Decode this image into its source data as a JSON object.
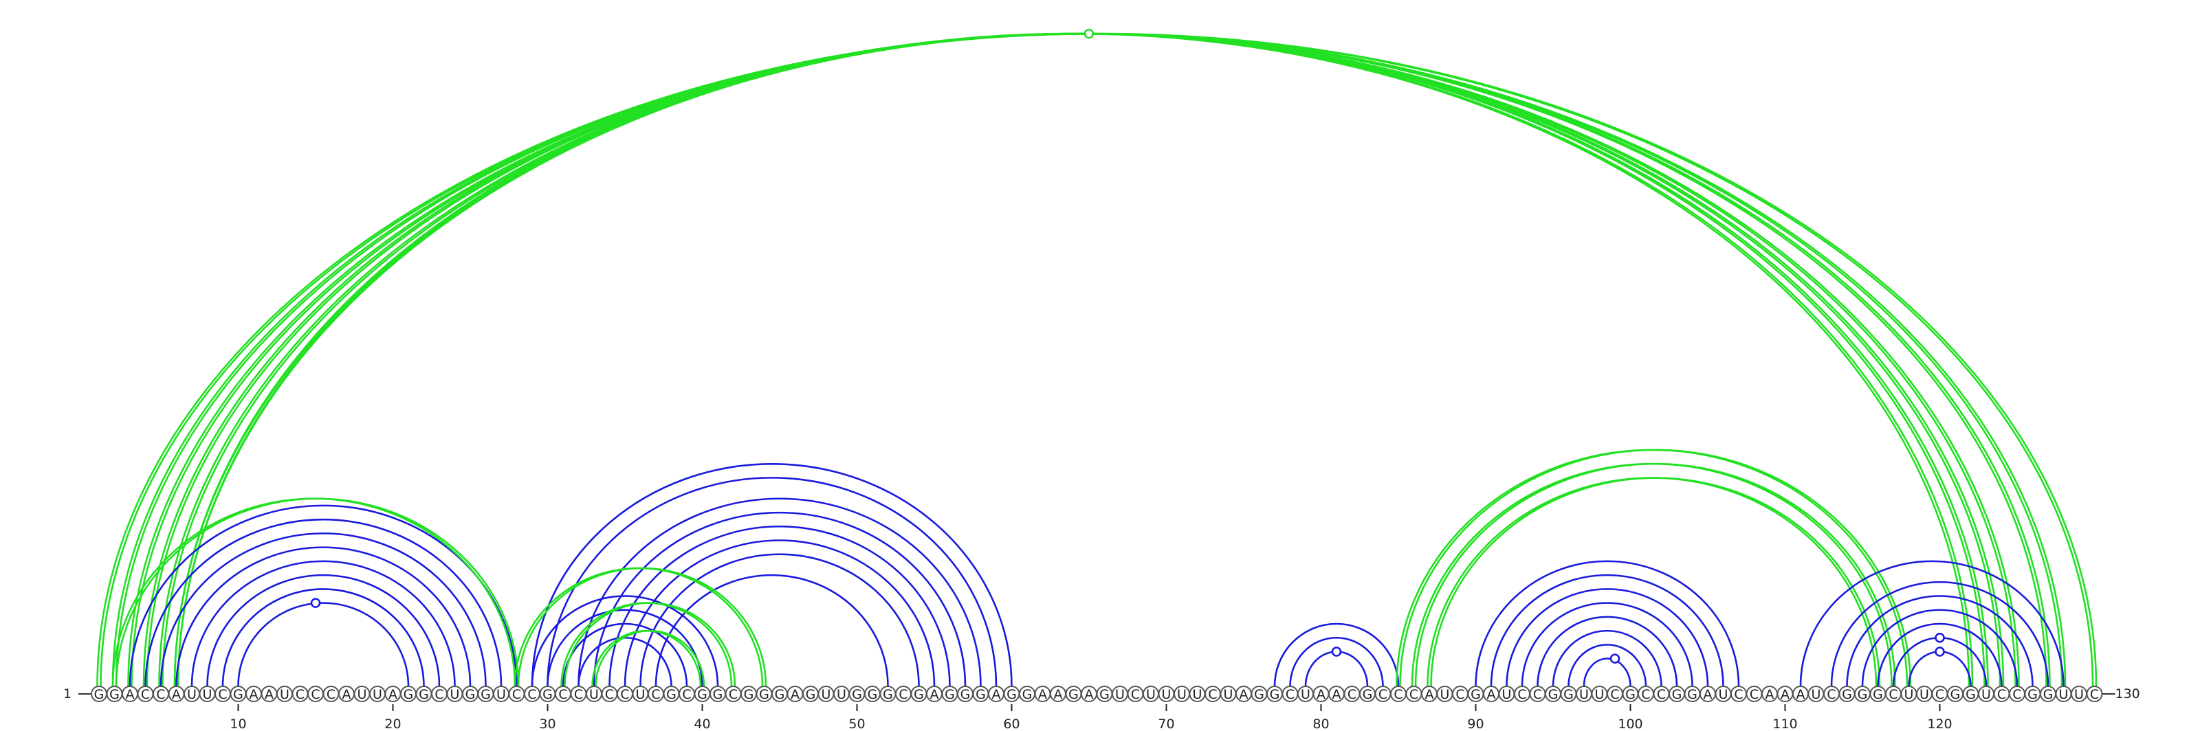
{
  "sequence": "GGACCAUUCGAAUCCCAUUAGGCUGGUCCGCCUCCUCGCGGCGGGAGUUGGGCGAGGGAGGAAGAGUCUUUUCUAGGCUAACGCCCAUCGAUCCGGUUCGCCGGAUCCAAAUCGGGCUUCGGUCCGGUUC",
  "start_label": "1",
  "end_label": "130",
  "ticks": [
    {
      "pos": 10,
      "label": "10"
    },
    {
      "pos": 20,
      "label": "20"
    },
    {
      "pos": 30,
      "label": "30"
    },
    {
      "pos": 40,
      "label": "40"
    },
    {
      "pos": 50,
      "label": "50"
    },
    {
      "pos": 60,
      "label": "60"
    },
    {
      "pos": 70,
      "label": "70"
    },
    {
      "pos": 80,
      "label": "80"
    },
    {
      "pos": 90,
      "label": "90"
    },
    {
      "pos": 100,
      "label": "100"
    },
    {
      "pos": 110,
      "label": "110"
    },
    {
      "pos": 120,
      "label": "120"
    }
  ],
  "colors": {
    "stem": "#1a1adf",
    "pseudoknot": "#22e022",
    "circle_stroke": "#555555"
  },
  "helices": [
    {
      "name": "long-range-pseudoknot-helix",
      "color": "pseudoknot",
      "double": true,
      "pairs": [
        [
          1,
          130
        ],
        [
          2,
          128
        ],
        [
          3,
          127
        ],
        [
          4,
          125
        ],
        [
          5,
          124
        ],
        [
          6,
          123
        ],
        [
          6,
          122
        ]
      ],
      "marker": [
        65,
        "open"
      ]
    },
    {
      "name": "stem-1",
      "color": "stem",
      "double": false,
      "pairs": [
        [
          3,
          28
        ],
        [
          4,
          27
        ],
        [
          5,
          26
        ],
        [
          6,
          25
        ],
        [
          7,
          24
        ],
        [
          8,
          23
        ],
        [
          9,
          22
        ],
        [
          10,
          21
        ]
      ],
      "marker": [
        15,
        "open"
      ]
    },
    {
      "name": "pseudoknot-2",
      "color": "pseudoknot",
      "double": true,
      "pairs": [
        [
          2,
          28
        ]
      ]
    },
    {
      "name": "stem-2",
      "color": "stem",
      "double": false,
      "pairs": [
        [
          29,
          60
        ],
        [
          30,
          59
        ],
        [
          32,
          58
        ],
        [
          33,
          57
        ],
        [
          34,
          56
        ],
        [
          35,
          55
        ],
        [
          36,
          54
        ],
        [
          37,
          52
        ]
      ]
    },
    {
      "name": "stem-3",
      "color": "stem",
      "double": false,
      "pairs": [
        [
          29,
          41
        ],
        [
          30,
          40
        ],
        [
          31,
          39
        ],
        [
          32,
          38
        ]
      ]
    },
    {
      "name": "pseudoknot-3",
      "color": "pseudoknot",
      "double": true,
      "pairs": [
        [
          28,
          44
        ],
        [
          31,
          42
        ],
        [
          33,
          40
        ]
      ]
    },
    {
      "name": "stem-4",
      "color": "stem",
      "double": false,
      "pairs": [
        [
          77,
          85
        ],
        [
          78,
          84
        ],
        [
          79,
          83
        ]
      ],
      "marker": [
        81,
        "filled"
      ]
    },
    {
      "name": "pseudoknot-4",
      "color": "pseudoknot",
      "double": true,
      "pairs": [
        [
          85,
          118
        ],
        [
          86,
          117
        ],
        [
          87,
          116
        ]
      ]
    },
    {
      "name": "stem-5",
      "color": "stem",
      "double": false,
      "pairs": [
        [
          90,
          107
        ],
        [
          91,
          106
        ],
        [
          92,
          105
        ],
        [
          93,
          104
        ],
        [
          94,
          103
        ],
        [
          95,
          102
        ],
        [
          96,
          101
        ],
        [
          97,
          100
        ]
      ],
      "marker": [
        99,
        "open"
      ]
    },
    {
      "name": "stem-6",
      "color": "stem",
      "double": false,
      "pairs": [
        [
          111,
          128
        ],
        [
          113,
          127
        ],
        [
          114,
          126
        ],
        [
          115,
          125
        ],
        [
          116,
          124
        ],
        [
          117,
          123
        ]
      ],
      "marker": [
        120,
        "open"
      ]
    },
    {
      "name": "stem-6b",
      "color": "stem",
      "double": false,
      "pairs": [
        [
          118,
          122
        ]
      ],
      "marker": [
        120,
        "open"
      ]
    }
  ]
}
